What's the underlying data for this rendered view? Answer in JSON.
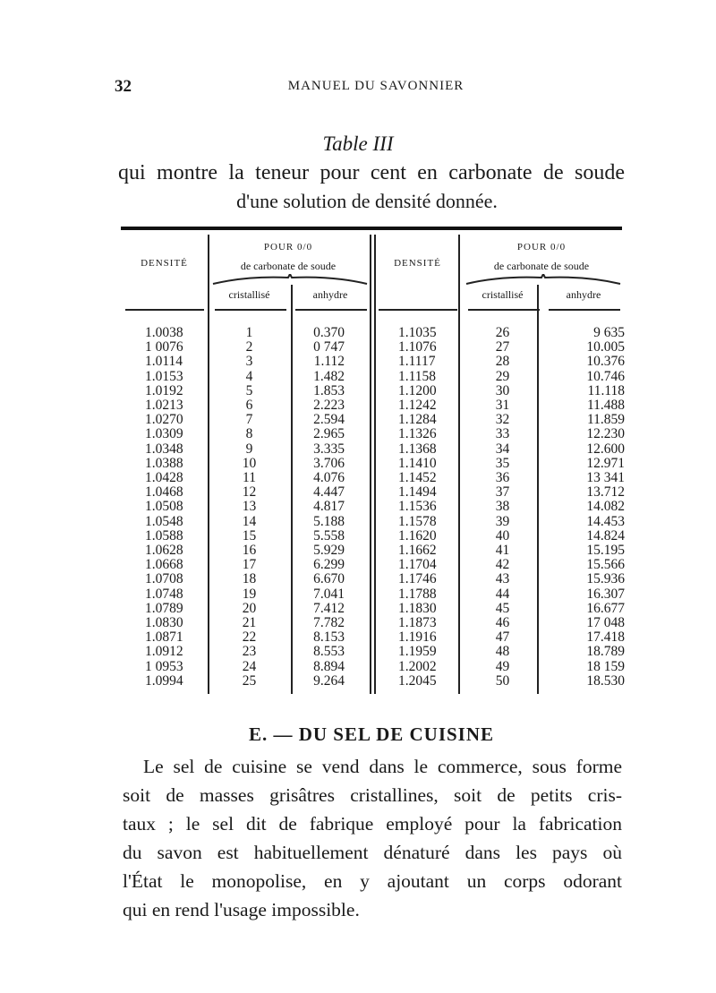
{
  "header": {
    "page_number": "32",
    "running_title": "MANUEL DU SAVONNIER"
  },
  "caption": {
    "table_label": "Table III",
    "line1": "qui montre la teneur pour cent en carbonate de soude",
    "line2": "d'une solution de densité donnée."
  },
  "table": {
    "col_density": "DENSITÉ",
    "group_top": "POUR 0/0",
    "group_sub": "de carbonate de soude",
    "col_crist": "cristallisé",
    "col_anhydre": "anhydre",
    "left_rows": [
      [
        "1.0038",
        "1",
        "0.370"
      ],
      [
        "1 0076",
        "2",
        "0 747"
      ],
      [
        "1.0114",
        "3",
        "1.112"
      ],
      [
        "1.0153",
        "4",
        "1.482"
      ],
      [
        "1.0192",
        "5",
        "1.853"
      ],
      [
        "1.0213",
        "6",
        "2.223"
      ],
      [
        "1.0270",
        "7",
        "2.594"
      ],
      [
        "1.0309",
        "8",
        "2.965"
      ],
      [
        "1.0348",
        "9",
        "3.335"
      ],
      [
        "1.0388",
        "10",
        "3.706"
      ],
      [
        "1.0428",
        "11",
        "4.076"
      ],
      [
        "1.0468",
        "12",
        "4.447"
      ],
      [
        "1.0508",
        "13",
        "4.817"
      ],
      [
        "1.0548",
        "14",
        "5.188"
      ],
      [
        "1.0588",
        "15",
        "5.558"
      ],
      [
        "1.0628",
        "16",
        "5.929"
      ],
      [
        "1.0668",
        "17",
        "6.299"
      ],
      [
        "1.0708",
        "18",
        "6.670"
      ],
      [
        "1.0748",
        "19",
        "7.041"
      ],
      [
        "1.0789",
        "20",
        "7.412"
      ],
      [
        "1.0830",
        "21",
        "7.782"
      ],
      [
        "1.0871",
        "22",
        "8.153"
      ],
      [
        "1.0912",
        "23",
        "8.553"
      ],
      [
        "1 0953",
        "24",
        "8.894"
      ],
      [
        "1.0994",
        "25",
        "9.264"
      ]
    ],
    "right_rows": [
      [
        "1.1035",
        "26",
        "9 635"
      ],
      [
        "1.1076",
        "27",
        "10.005"
      ],
      [
        "1.1117",
        "28",
        "10.376"
      ],
      [
        "1.1158",
        "29",
        "10.746"
      ],
      [
        "1.1200",
        "30",
        "11.118"
      ],
      [
        "1.1242",
        "31",
        "11.488"
      ],
      [
        "1.1284",
        "32",
        "11.859"
      ],
      [
        "1.1326",
        "33",
        "12.230"
      ],
      [
        "1.1368",
        "34",
        "12.600"
      ],
      [
        "1.1410",
        "35",
        "12.971"
      ],
      [
        "1.1452",
        "36",
        "13 341"
      ],
      [
        "1.1494",
        "37",
        "13.712"
      ],
      [
        "1.1536",
        "38",
        "14.082"
      ],
      [
        "1.1578",
        "39",
        "14.453"
      ],
      [
        "1.1620",
        "40",
        "14.824"
      ],
      [
        "1.1662",
        "41",
        "15.195"
      ],
      [
        "1.1704",
        "42",
        "15.566"
      ],
      [
        "1.1746",
        "43",
        "15.936"
      ],
      [
        "1.1788",
        "44",
        "16.307"
      ],
      [
        "1.1830",
        "45",
        "16.677"
      ],
      [
        "1.1873",
        "46",
        "17 048"
      ],
      [
        "1.1916",
        "47",
        "17.418"
      ],
      [
        "1.1959",
        "48",
        "18.789"
      ],
      [
        "1.2002",
        "49",
        "18 159"
      ],
      [
        "1.2045",
        "50",
        "18.530"
      ]
    ]
  },
  "section": {
    "heading": "E. — DU SEL DE CUISINE",
    "lines": [
      "Le sel de cuisine se vend dans le commerce, sous forme",
      "soit de masses grisâtres cristallines, soit de petits cris-",
      "taux ; le sel dit de fabrique employé pour la fabrication",
      "du savon est habituellement dénaturé dans les pays où",
      "l'État le monopolise, en y ajoutant un corps odorant",
      "qui en rend l'usage impossible."
    ]
  }
}
